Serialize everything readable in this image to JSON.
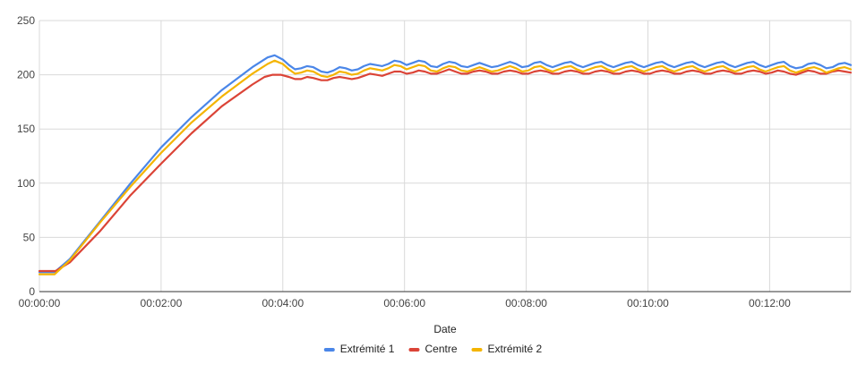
{
  "chart_data": {
    "type": "line",
    "xlabel": "Date",
    "ylabel": "",
    "xlim_seconds": [
      0,
      800
    ],
    "ylim": [
      0,
      250
    ],
    "y_ticks": [
      0,
      50,
      100,
      150,
      200,
      250
    ],
    "x_ticks": [
      "00:00:00",
      "00:02:00",
      "00:04:00",
      "00:06:00",
      "00:08:00",
      "00:10:00",
      "00:12:00"
    ],
    "x_tick_seconds": [
      0,
      120,
      240,
      360,
      480,
      600,
      720
    ],
    "grid": true,
    "legend": "bottom",
    "series": [
      {
        "name": "Extrémité 1",
        "color": "#4a86e8",
        "points": [
          [
            0,
            18
          ],
          [
            15,
            18
          ],
          [
            30,
            30
          ],
          [
            60,
            65
          ],
          [
            90,
            100
          ],
          [
            120,
            133
          ],
          [
            150,
            161
          ],
          [
            180,
            186
          ],
          [
            210,
            207
          ],
          [
            225,
            216
          ],
          [
            232,
            218
          ],
          [
            240,
            214
          ],
          [
            246,
            209
          ],
          [
            252,
            205
          ],
          [
            258,
            206
          ],
          [
            264,
            208
          ],
          [
            270,
            207
          ],
          [
            278,
            203
          ],
          [
            284,
            202
          ],
          [
            290,
            204
          ],
          [
            296,
            207
          ],
          [
            302,
            206
          ],
          [
            308,
            204
          ],
          [
            314,
            205
          ],
          [
            320,
            208
          ],
          [
            326,
            210
          ],
          [
            332,
            209
          ],
          [
            338,
            208
          ],
          [
            344,
            210
          ],
          [
            350,
            213
          ],
          [
            356,
            212
          ],
          [
            362,
            209
          ],
          [
            368,
            211
          ],
          [
            374,
            213
          ],
          [
            380,
            212
          ],
          [
            386,
            208
          ],
          [
            392,
            207
          ],
          [
            398,
            210
          ],
          [
            404,
            212
          ],
          [
            410,
            211
          ],
          [
            416,
            208
          ],
          [
            422,
            207
          ],
          [
            428,
            209
          ],
          [
            434,
            211
          ],
          [
            440,
            209
          ],
          [
            446,
            207
          ],
          [
            452,
            208
          ],
          [
            458,
            210
          ],
          [
            464,
            212
          ],
          [
            470,
            210
          ],
          [
            476,
            207
          ],
          [
            482,
            208
          ],
          [
            488,
            211
          ],
          [
            494,
            212
          ],
          [
            500,
            209
          ],
          [
            506,
            207
          ],
          [
            512,
            209
          ],
          [
            518,
            211
          ],
          [
            524,
            212
          ],
          [
            530,
            209
          ],
          [
            536,
            207
          ],
          [
            542,
            209
          ],
          [
            548,
            211
          ],
          [
            554,
            212
          ],
          [
            560,
            209
          ],
          [
            566,
            207
          ],
          [
            572,
            209
          ],
          [
            578,
            211
          ],
          [
            584,
            212
          ],
          [
            590,
            209
          ],
          [
            596,
            207
          ],
          [
            602,
            209
          ],
          [
            608,
            211
          ],
          [
            614,
            212
          ],
          [
            620,
            209
          ],
          [
            626,
            207
          ],
          [
            632,
            209
          ],
          [
            638,
            211
          ],
          [
            644,
            212
          ],
          [
            650,
            209
          ],
          [
            656,
            207
          ],
          [
            662,
            209
          ],
          [
            668,
            211
          ],
          [
            674,
            212
          ],
          [
            680,
            209
          ],
          [
            686,
            207
          ],
          [
            692,
            209
          ],
          [
            698,
            211
          ],
          [
            704,
            212
          ],
          [
            710,
            209
          ],
          [
            716,
            207
          ],
          [
            722,
            209
          ],
          [
            728,
            211
          ],
          [
            734,
            212
          ],
          [
            740,
            208
          ],
          [
            746,
            206
          ],
          [
            752,
            207
          ],
          [
            758,
            210
          ],
          [
            764,
            211
          ],
          [
            770,
            209
          ],
          [
            776,
            206
          ],
          [
            782,
            207
          ],
          [
            788,
            210
          ],
          [
            794,
            211
          ],
          [
            800,
            209
          ]
        ]
      },
      {
        "name": "Centre",
        "color": "#db4437",
        "points": [
          [
            0,
            19
          ],
          [
            16,
            19
          ],
          [
            30,
            27
          ],
          [
            60,
            56
          ],
          [
            90,
            89
          ],
          [
            120,
            118
          ],
          [
            150,
            146
          ],
          [
            180,
            171
          ],
          [
            210,
            191
          ],
          [
            222,
            198
          ],
          [
            230,
            200
          ],
          [
            238,
            200
          ],
          [
            246,
            198
          ],
          [
            252,
            196
          ],
          [
            258,
            196
          ],
          [
            264,
            198
          ],
          [
            270,
            197
          ],
          [
            278,
            195
          ],
          [
            284,
            195
          ],
          [
            290,
            197
          ],
          [
            296,
            198
          ],
          [
            302,
            197
          ],
          [
            308,
            196
          ],
          [
            314,
            197
          ],
          [
            320,
            199
          ],
          [
            326,
            201
          ],
          [
            332,
            200
          ],
          [
            338,
            199
          ],
          [
            344,
            201
          ],
          [
            350,
            203
          ],
          [
            356,
            203
          ],
          [
            362,
            201
          ],
          [
            368,
            202
          ],
          [
            374,
            204
          ],
          [
            380,
            203
          ],
          [
            386,
            201
          ],
          [
            392,
            201
          ],
          [
            398,
            203
          ],
          [
            404,
            205
          ],
          [
            410,
            203
          ],
          [
            416,
            201
          ],
          [
            422,
            201
          ],
          [
            428,
            203
          ],
          [
            434,
            204
          ],
          [
            440,
            203
          ],
          [
            446,
            201
          ],
          [
            452,
            201
          ],
          [
            458,
            203
          ],
          [
            464,
            204
          ],
          [
            470,
            203
          ],
          [
            476,
            201
          ],
          [
            482,
            201
          ],
          [
            488,
            203
          ],
          [
            494,
            204
          ],
          [
            500,
            203
          ],
          [
            506,
            201
          ],
          [
            512,
            201
          ],
          [
            518,
            203
          ],
          [
            524,
            204
          ],
          [
            530,
            203
          ],
          [
            536,
            201
          ],
          [
            542,
            201
          ],
          [
            548,
            203
          ],
          [
            554,
            204
          ],
          [
            560,
            203
          ],
          [
            566,
            201
          ],
          [
            572,
            201
          ],
          [
            578,
            203
          ],
          [
            584,
            204
          ],
          [
            590,
            203
          ],
          [
            596,
            201
          ],
          [
            602,
            201
          ],
          [
            608,
            203
          ],
          [
            614,
            204
          ],
          [
            620,
            203
          ],
          [
            626,
            201
          ],
          [
            632,
            201
          ],
          [
            638,
            203
          ],
          [
            644,
            204
          ],
          [
            650,
            203
          ],
          [
            656,
            201
          ],
          [
            662,
            201
          ],
          [
            668,
            203
          ],
          [
            674,
            204
          ],
          [
            680,
            203
          ],
          [
            686,
            201
          ],
          [
            692,
            201
          ],
          [
            698,
            203
          ],
          [
            704,
            204
          ],
          [
            710,
            203
          ],
          [
            716,
            201
          ],
          [
            722,
            202
          ],
          [
            728,
            204
          ],
          [
            734,
            203
          ],
          [
            740,
            201
          ],
          [
            746,
            200
          ],
          [
            752,
            202
          ],
          [
            758,
            204
          ],
          [
            764,
            203
          ],
          [
            770,
            201
          ],
          [
            776,
            201
          ],
          [
            782,
            203
          ],
          [
            788,
            204
          ],
          [
            794,
            203
          ],
          [
            800,
            202
          ]
        ]
      },
      {
        "name": "Extrémité 2",
        "color": "#f4b400",
        "points": [
          [
            0,
            16
          ],
          [
            15,
            16
          ],
          [
            30,
            29
          ],
          [
            60,
            64
          ],
          [
            90,
            97
          ],
          [
            120,
            128
          ],
          [
            150,
            156
          ],
          [
            180,
            180
          ],
          [
            210,
            201
          ],
          [
            225,
            210
          ],
          [
            232,
            213
          ],
          [
            240,
            210
          ],
          [
            246,
            205
          ],
          [
            252,
            201
          ],
          [
            258,
            202
          ],
          [
            264,
            204
          ],
          [
            270,
            203
          ],
          [
            278,
            199
          ],
          [
            284,
            198
          ],
          [
            290,
            200
          ],
          [
            296,
            203
          ],
          [
            302,
            202
          ],
          [
            308,
            200
          ],
          [
            314,
            201
          ],
          [
            320,
            204
          ],
          [
            326,
            206
          ],
          [
            332,
            205
          ],
          [
            338,
            204
          ],
          [
            344,
            206
          ],
          [
            350,
            209
          ],
          [
            356,
            208
          ],
          [
            362,
            205
          ],
          [
            368,
            207
          ],
          [
            374,
            209
          ],
          [
            380,
            208
          ],
          [
            386,
            204
          ],
          [
            392,
            203
          ],
          [
            398,
            206
          ],
          [
            404,
            208
          ],
          [
            410,
            207
          ],
          [
            416,
            204
          ],
          [
            422,
            203
          ],
          [
            428,
            205
          ],
          [
            434,
            207
          ],
          [
            440,
            205
          ],
          [
            446,
            203
          ],
          [
            452,
            204
          ],
          [
            458,
            206
          ],
          [
            464,
            208
          ],
          [
            470,
            206
          ],
          [
            476,
            203
          ],
          [
            482,
            204
          ],
          [
            488,
            207
          ],
          [
            494,
            208
          ],
          [
            500,
            205
          ],
          [
            506,
            203
          ],
          [
            512,
            205
          ],
          [
            518,
            207
          ],
          [
            524,
            208
          ],
          [
            530,
            205
          ],
          [
            536,
            203
          ],
          [
            542,
            205
          ],
          [
            548,
            207
          ],
          [
            554,
            208
          ],
          [
            560,
            205
          ],
          [
            566,
            203
          ],
          [
            572,
            205
          ],
          [
            578,
            207
          ],
          [
            584,
            208
          ],
          [
            590,
            205
          ],
          [
            596,
            203
          ],
          [
            602,
            205
          ],
          [
            608,
            207
          ],
          [
            614,
            208
          ],
          [
            620,
            205
          ],
          [
            626,
            203
          ],
          [
            632,
            205
          ],
          [
            638,
            207
          ],
          [
            644,
            208
          ],
          [
            650,
            205
          ],
          [
            656,
            203
          ],
          [
            662,
            205
          ],
          [
            668,
            207
          ],
          [
            674,
            208
          ],
          [
            680,
            205
          ],
          [
            686,
            203
          ],
          [
            692,
            205
          ],
          [
            698,
            207
          ],
          [
            704,
            208
          ],
          [
            710,
            205
          ],
          [
            716,
            203
          ],
          [
            722,
            205
          ],
          [
            728,
            207
          ],
          [
            734,
            208
          ],
          [
            740,
            204
          ],
          [
            746,
            202
          ],
          [
            752,
            204
          ],
          [
            758,
            206
          ],
          [
            764,
            207
          ],
          [
            770,
            205
          ],
          [
            776,
            202
          ],
          [
            782,
            204
          ],
          [
            788,
            206
          ],
          [
            794,
            207
          ],
          [
            800,
            205
          ]
        ]
      }
    ]
  }
}
